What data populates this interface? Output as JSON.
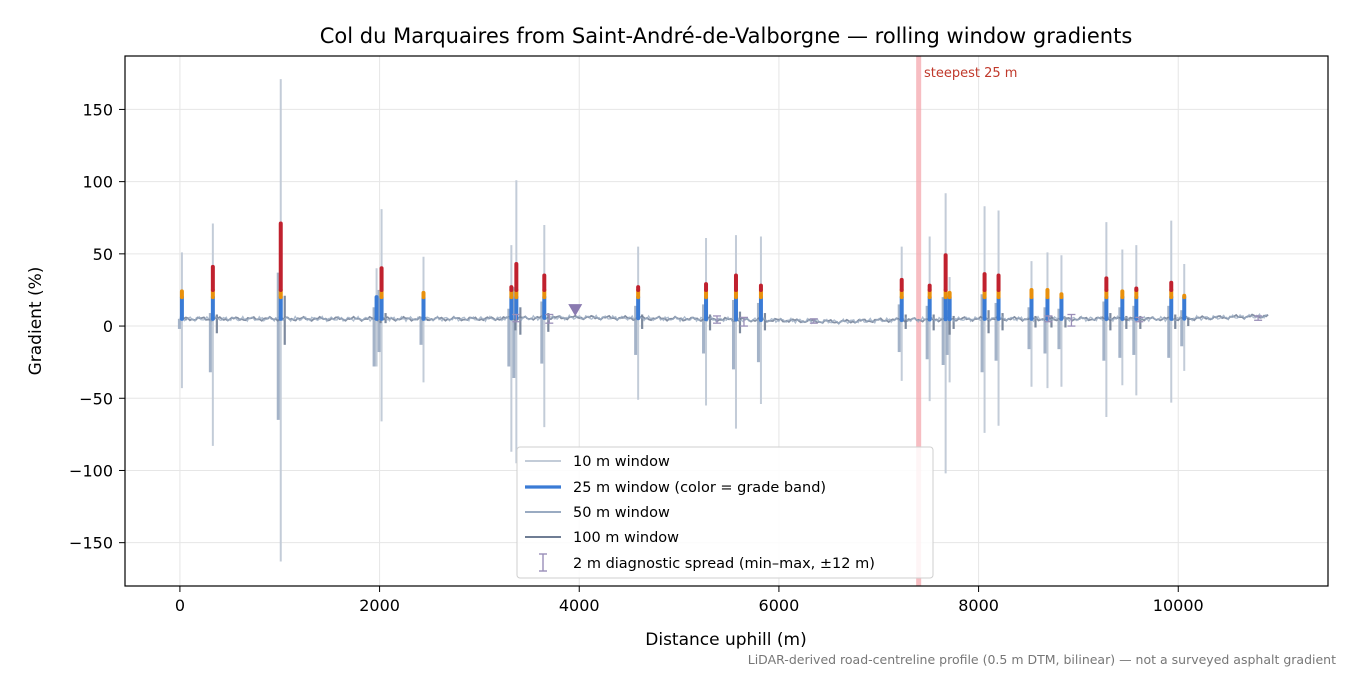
{
  "chart_data": {
    "type": "line",
    "title": "Col du Marquaires from Saint-André-de-Valborgne — rolling window gradients",
    "xlabel": "Distance uphill (m)",
    "ylabel": "Gradient (%)",
    "xlim": [
      -550,
      11500
    ],
    "ylim": [
      -180,
      187
    ],
    "x_ticks": [
      0,
      2000,
      4000,
      6000,
      8000,
      10000
    ],
    "x_tick_labels": [
      "0",
      "2000",
      "4000",
      "6000",
      "8000",
      "10000"
    ],
    "y_ticks": [
      -150,
      -100,
      -50,
      0,
      50,
      100,
      150
    ],
    "y_tick_labels": [
      "−150",
      "−100",
      "−50",
      "0",
      "50",
      "100",
      "150"
    ],
    "grid": true,
    "legend_placement": "lower-center",
    "colors": {
      "w10": "#c3ccd8",
      "w25_base": "#3a7bd5",
      "w25_orange": "#e8900c",
      "w25_red": "#c0212e",
      "w50": "#9aabc2",
      "w100": "#6f7d94",
      "diag": "#9a8fb8",
      "steepest": "#f4a7ad"
    },
    "legend": [
      {
        "label": "10 m window",
        "key": "w10"
      },
      {
        "label": "25 m window (color = grade band)",
        "key": "w25"
      },
      {
        "label": "50 m window",
        "key": "w50"
      },
      {
        "label": "100 m window",
        "key": "w100"
      },
      {
        "label": "2 m diagnostic spread (min–max, ±12 m)",
        "key": "diag"
      }
    ],
    "annotation": {
      "label": "steepest 25 m",
      "x": 7400
    },
    "marker": {
      "shape": "triangle-down",
      "x": 3960,
      "y": 11
    },
    "baseline_trend": [
      [
        0,
        5
      ],
      [
        1000,
        5
      ],
      [
        2000,
        5
      ],
      [
        3000,
        5
      ],
      [
        4000,
        6
      ],
      [
        5000,
        5
      ],
      [
        6000,
        4
      ],
      [
        6600,
        3
      ],
      [
        7000,
        4
      ],
      [
        8000,
        5
      ],
      [
        9000,
        5
      ],
      [
        10000,
        5
      ],
      [
        10900,
        7
      ]
    ],
    "spikes": [
      {
        "x": 20,
        "w10": [
          51,
          -43
        ],
        "w25": 24,
        "w50": [
          5,
          -2
        ],
        "w100": [
          5,
          4
        ]
      },
      {
        "x": 330,
        "w10": [
          71,
          -83
        ],
        "w25": 41,
        "w50": [
          9,
          -32
        ],
        "w100": [
          8,
          -5
        ]
      },
      {
        "x": 1010,
        "w10": [
          171,
          -163
        ],
        "w25": 71,
        "w50": [
          37,
          -65
        ],
        "w100": [
          21,
          -13
        ]
      },
      {
        "x": 1970,
        "w10": [
          40,
          -28
        ],
        "w25": 20,
        "w50": [
          13,
          -28
        ],
        "w100": [
          7,
          2
        ]
      },
      {
        "x": 2020,
        "w10": [
          81,
          -66
        ],
        "w25": 40,
        "w50": [
          25,
          -18
        ],
        "w100": [
          9,
          2
        ]
      },
      {
        "x": 2440,
        "w10": [
          48,
          -39
        ],
        "w25": 23,
        "w50": [
          6,
          -13
        ],
        "w100": [
          5,
          4
        ]
      },
      {
        "x": 3320,
        "w10": [
          56,
          -87
        ],
        "w25": 27,
        "w50": [
          12,
          -28
        ],
        "w100": [
          9,
          -3
        ]
      },
      {
        "x": 3370,
        "w10": [
          101,
          -95
        ],
        "w25": 43,
        "w50": [
          27,
          -36
        ],
        "w100": [
          13,
          -6
        ]
      },
      {
        "x": 3650,
        "w10": [
          70,
          -70
        ],
        "w25": 35,
        "w50": [
          17,
          -26
        ],
        "w100": [
          9,
          -4
        ]
      },
      {
        "x": 4590,
        "w10": [
          55,
          -51
        ],
        "w25": 27,
        "w50": [
          14,
          -20
        ],
        "w100": [
          8,
          -2
        ]
      },
      {
        "x": 5270,
        "w10": [
          61,
          -55
        ],
        "w25": 29,
        "w50": [
          15,
          -19
        ],
        "w100": [
          8,
          -3
        ]
      },
      {
        "x": 5570,
        "w10": [
          63,
          -71
        ],
        "w25": 35,
        "w50": [
          18,
          -30
        ],
        "w100": [
          10,
          -5
        ]
      },
      {
        "x": 5820,
        "w10": [
          62,
          -54
        ],
        "w25": 28,
        "w50": [
          16,
          -25
        ],
        "w100": [
          9,
          -3
        ]
      },
      {
        "x": 7230,
        "w10": [
          55,
          -38
        ],
        "w25": 32,
        "w50": [
          15,
          -18
        ],
        "w100": [
          8,
          -2
        ]
      },
      {
        "x": 7510,
        "w10": [
          62,
          -52
        ],
        "w25": 28,
        "w50": [
          14,
          -23
        ],
        "w100": [
          8,
          -3
        ]
      },
      {
        "x": 7670,
        "w10": [
          92,
          -102
        ],
        "w25": 49,
        "w50": [
          20,
          -27
        ],
        "w100": [
          12,
          -6
        ]
      },
      {
        "x": 7710,
        "w10": [
          34,
          -39
        ],
        "w25": 23,
        "w50": [
          11,
          -20
        ],
        "w100": [
          7,
          -2
        ]
      },
      {
        "x": 8060,
        "w10": [
          83,
          -74
        ],
        "w25": 36,
        "w50": [
          22,
          -32
        ],
        "w100": [
          11,
          -5
        ]
      },
      {
        "x": 8200,
        "w10": [
          80,
          -69
        ],
        "w25": 35,
        "w50": [
          16,
          -24
        ],
        "w100": [
          9,
          -3
        ]
      },
      {
        "x": 8530,
        "w10": [
          45,
          -42
        ],
        "w25": 25,
        "w50": [
          13,
          -16
        ],
        "w100": [
          7,
          -1
        ]
      },
      {
        "x": 8690,
        "w10": [
          51,
          -43
        ],
        "w25": 25,
        "w50": [
          13,
          -19
        ],
        "w100": [
          7,
          -1
        ]
      },
      {
        "x": 8830,
        "w10": [
          49,
          -42
        ],
        "w25": 22,
        "w50": [
          12,
          -16
        ],
        "w100": [
          6,
          -1
        ]
      },
      {
        "x": 9280,
        "w10": [
          72,
          -63
        ],
        "w25": 33,
        "w50": [
          17,
          -24
        ],
        "w100": [
          9,
          -3
        ]
      },
      {
        "x": 9440,
        "w10": [
          53,
          -41
        ],
        "w25": 24,
        "w50": [
          13,
          -22
        ],
        "w100": [
          7,
          -2
        ]
      },
      {
        "x": 9580,
        "w10": [
          56,
          -48
        ],
        "w25": 26,
        "w50": [
          14,
          -20
        ],
        "w100": [
          7,
          -2
        ]
      },
      {
        "x": 9930,
        "w10": [
          73,
          -53
        ],
        "w25": 30,
        "w50": [
          14,
          -22
        ],
        "w100": [
          8,
          -2
        ]
      },
      {
        "x": 10060,
        "w10": [
          43,
          -31
        ],
        "w25": 21,
        "w50": [
          11,
          -14
        ],
        "w100": [
          6,
          0
        ]
      }
    ],
    "diagnostic_spread": [
      {
        "x": 3370,
        "min": 3,
        "max": 8
      },
      {
        "x": 3700,
        "min": 2,
        "max": 8
      },
      {
        "x": 5380,
        "min": 2,
        "max": 7
      },
      {
        "x": 5650,
        "min": 0,
        "max": 6
      },
      {
        "x": 6350,
        "min": 2,
        "max": 5
      },
      {
        "x": 8700,
        "min": 3,
        "max": 7
      },
      {
        "x": 8930,
        "min": 0,
        "max": 8
      },
      {
        "x": 9610,
        "min": 3,
        "max": 6
      },
      {
        "x": 10800,
        "min": 4,
        "max": 7
      }
    ]
  },
  "footnote": "LiDAR-derived road-centreline profile (0.5 m DTM, bilinear) — not a surveyed asphalt gradient"
}
